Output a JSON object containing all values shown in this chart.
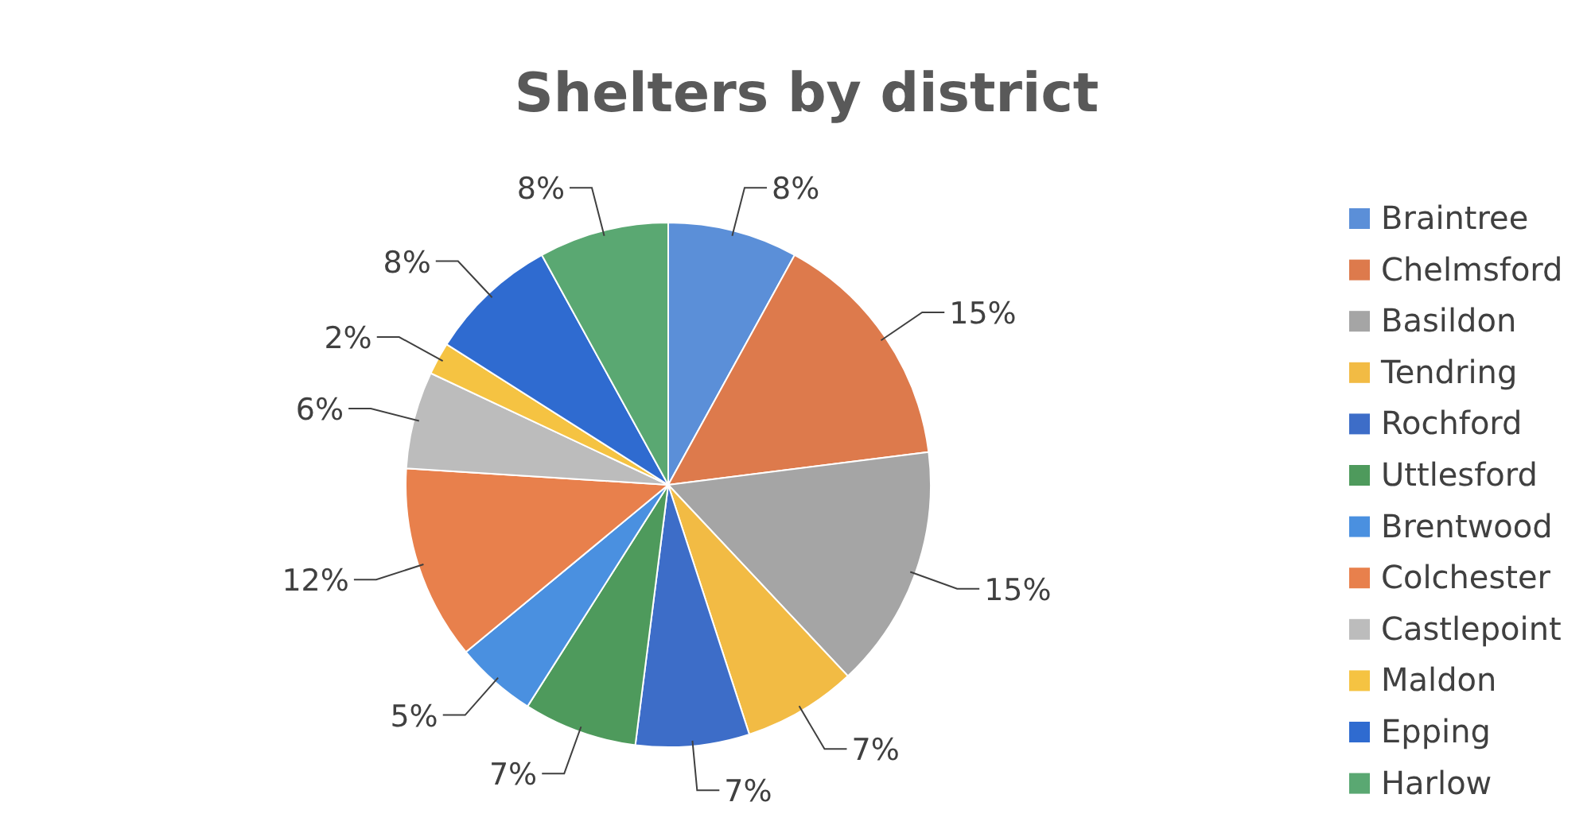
{
  "chart_data": {
    "type": "pie",
    "title": "Shelters by district",
    "categories": [
      "Braintree",
      "Chelmsford",
      "Basildon",
      "Tendring",
      "Rochford",
      "Uttlesford",
      "Brentwood",
      "Colchester",
      "Castlepoint",
      "Maldon",
      "Epping",
      "Harlow"
    ],
    "values": [
      8,
      15,
      15,
      7,
      7,
      7,
      5,
      12,
      6,
      2,
      8,
      8
    ],
    "value_labels": [
      "8%",
      "15%",
      "15%",
      "7%",
      "7%",
      "7%",
      "5%",
      "12%",
      "6%",
      "2%",
      "8%",
      "8%"
    ],
    "colors": [
      "#5b8fd8",
      "#dd7a4c",
      "#a5a5a5",
      "#f2bb44",
      "#3d6dc8",
      "#4e9a5c",
      "#4a90e0",
      "#e8804c",
      "#bcbcbc",
      "#f5c342",
      "#2f6bd0",
      "#5aa872"
    ],
    "legend": "right"
  }
}
